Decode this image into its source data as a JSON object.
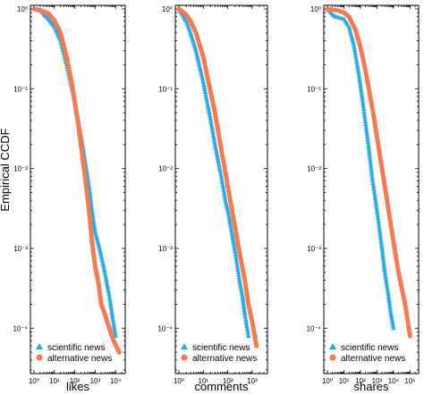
{
  "figure": {
    "ylabel": "Empirical CCDF"
  },
  "colors": {
    "scientific": "#29abe2",
    "alternative": "#f47a50",
    "axis": "#000000"
  },
  "legend": {
    "placement": "bottom-left",
    "entries": [
      {
        "label": "scientific news",
        "marker": "triangle"
      },
      {
        "label": "alternative news",
        "marker": "circle"
      }
    ]
  },
  "chart_data": [
    {
      "type": "scatter",
      "xlabel": "likes",
      "x_scale": "log",
      "y_scale": "log",
      "xlim": [
        1,
        20000
      ],
      "ylim": [
        3e-05,
        1
      ],
      "x_ticks": [
        {
          "value": 1,
          "label": "10⁰"
        },
        {
          "value": 10,
          "label": "10¹"
        },
        {
          "value": 100,
          "label": "10²"
        },
        {
          "value": 1000,
          "label": "10³"
        },
        {
          "value": 10000,
          "label": "10⁴"
        }
      ],
      "y_ticks": [
        {
          "value": 1,
          "label": "10⁰"
        },
        {
          "value": 0.1,
          "label": "10⁻¹"
        },
        {
          "value": 0.01,
          "label": "10⁻²"
        },
        {
          "value": 0.001,
          "label": "10⁻³"
        },
        {
          "value": 0.0001,
          "label": "10⁻⁴"
        }
      ],
      "series": [
        {
          "name": "scientific news",
          "marker": "triangle",
          "x": [
            1,
            2,
            3,
            5,
            10,
            20,
            40,
            80,
            150,
            300,
            500,
            700,
            1000,
            1500,
            2000,
            3000,
            5000,
            10000
          ],
          "y": [
            1,
            0.95,
            0.85,
            0.75,
            0.6,
            0.4,
            0.2,
            0.09,
            0.04,
            0.014,
            0.006,
            0.003,
            0.0016,
            0.0011,
            0.0008,
            0.0005,
            0.00025,
            8e-05
          ]
        },
        {
          "name": "alternative news",
          "marker": "circle",
          "x": [
            1,
            2,
            3,
            5,
            10,
            20,
            40,
            80,
            150,
            300,
            500,
            700,
            1000,
            1500,
            2000,
            3000,
            5000,
            8000,
            15000
          ],
          "y": [
            1,
            0.97,
            0.93,
            0.88,
            0.72,
            0.5,
            0.25,
            0.1,
            0.035,
            0.009,
            0.003,
            0.0012,
            0.0006,
            0.00035,
            0.0002,
            0.00015,
            0.0001,
            7e-05,
            5e-05
          ]
        }
      ]
    },
    {
      "type": "scatter",
      "xlabel": "comments",
      "x_scale": "log",
      "y_scale": "log",
      "xlim": [
        1,
        3000
      ],
      "ylim": [
        3e-05,
        1
      ],
      "x_ticks": [
        {
          "value": 1,
          "label": "10⁰"
        },
        {
          "value": 10,
          "label": "10¹"
        },
        {
          "value": 100,
          "label": "10²"
        },
        {
          "value": 1000,
          "label": "10³"
        }
      ],
      "y_ticks": [
        {
          "value": 1,
          "label": "10⁰"
        },
        {
          "value": 0.1,
          "label": "10⁻¹"
        },
        {
          "value": 0.01,
          "label": "10⁻²"
        },
        {
          "value": 0.001,
          "label": "10⁻³"
        },
        {
          "value": 0.0001,
          "label": "10⁻⁴"
        }
      ],
      "series": [
        {
          "name": "scientific news",
          "marker": "triangle",
          "x": [
            1,
            2,
            3,
            5,
            10,
            20,
            30,
            50,
            80,
            100,
            150,
            200,
            300,
            400,
            500,
            700
          ],
          "y": [
            1,
            0.7,
            0.5,
            0.3,
            0.12,
            0.04,
            0.02,
            0.009,
            0.004,
            0.003,
            0.0015,
            0.0009,
            0.0004,
            0.00025,
            0.00015,
            8e-05
          ]
        },
        {
          "name": "alternative news",
          "marker": "circle",
          "x": [
            1,
            2,
            3,
            5,
            10,
            20,
            30,
            50,
            80,
            100,
            150,
            200,
            300,
            500,
            700,
            1000,
            1500
          ],
          "y": [
            1,
            0.85,
            0.7,
            0.5,
            0.25,
            0.09,
            0.05,
            0.02,
            0.009,
            0.006,
            0.003,
            0.0018,
            0.0009,
            0.0004,
            0.0002,
            0.00012,
            6e-05
          ]
        }
      ]
    },
    {
      "type": "scatter",
      "xlabel": "shares",
      "x_scale": "log",
      "y_scale": "log",
      "xlim": [
        1,
        200000
      ],
      "ylim": [
        3e-05,
        1
      ],
      "x_ticks": [
        {
          "value": 1,
          "label": "10⁰"
        },
        {
          "value": 10,
          "label": "10¹"
        },
        {
          "value": 100,
          "label": "10²"
        },
        {
          "value": 1000,
          "label": "10³"
        },
        {
          "value": 10000,
          "label": "10⁴"
        },
        {
          "value": 100000,
          "label": "10⁵"
        }
      ],
      "y_ticks": [
        {
          "value": 1,
          "label": "10⁰"
        },
        {
          "value": 0.1,
          "label": "10⁻¹"
        },
        {
          "value": 0.01,
          "label": "10⁻²"
        },
        {
          "value": 0.001,
          "label": "10⁻³"
        },
        {
          "value": 0.0001,
          "label": "10⁻⁴"
        }
      ],
      "series": [
        {
          "name": "scientific news",
          "marker": "triangle",
          "x": [
            1,
            2,
            3,
            5,
            10,
            20,
            40,
            80,
            150,
            300,
            500,
            1000,
            2000,
            3000,
            5000,
            7000,
            10000
          ],
          "y": [
            1,
            0.85,
            0.8,
            0.78,
            0.75,
            0.6,
            0.35,
            0.15,
            0.06,
            0.02,
            0.008,
            0.003,
            0.001,
            0.0005,
            0.00025,
            0.00015,
            0.0001
          ]
        },
        {
          "name": "alternative news",
          "marker": "circle",
          "x": [
            1,
            2,
            5,
            10,
            20,
            50,
            100,
            200,
            500,
            1000,
            2000,
            5000,
            10000,
            20000,
            50000,
            100000
          ],
          "y": [
            1,
            0.98,
            0.95,
            0.9,
            0.8,
            0.55,
            0.33,
            0.17,
            0.06,
            0.025,
            0.01,
            0.003,
            0.0012,
            0.0005,
            0.0002,
            8e-05
          ]
        }
      ]
    }
  ]
}
